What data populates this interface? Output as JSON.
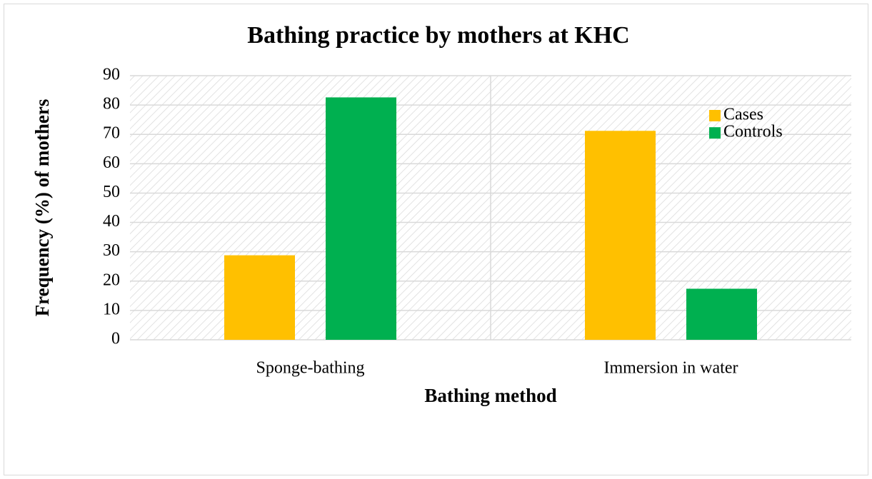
{
  "chart_data": {
    "type": "bar",
    "title": "Bathing practice by mothers at KHC",
    "x_label": "Bathing method",
    "y_label": "Frequency (%) of mothers",
    "categories": [
      "Sponge-bathing",
      "Immersion in water"
    ],
    "series": [
      {
        "name": "Cases",
        "color": "#ffc000",
        "values": [
          28.8,
          71.2
        ]
      },
      {
        "name": "Controls",
        "color": "#00b050",
        "values": [
          82.6,
          17.4
        ]
      }
    ],
    "ylim": [
      0,
      90
    ],
    "yticks": [
      0,
      10,
      20,
      30,
      40,
      50,
      60,
      70,
      80,
      90
    ],
    "grid": true,
    "legend": "top-right"
  }
}
